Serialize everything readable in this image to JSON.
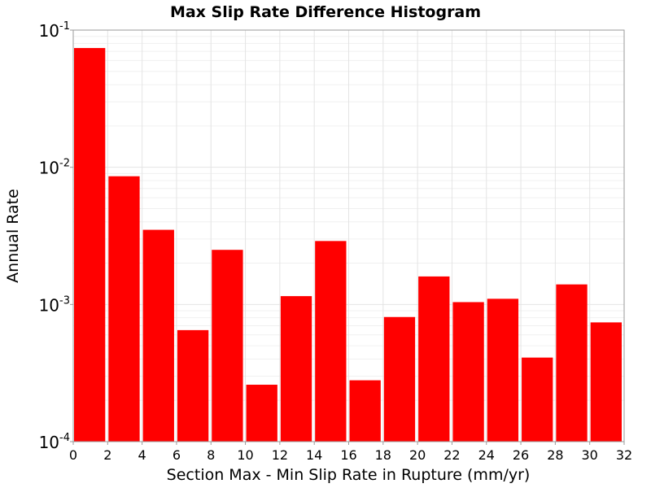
{
  "chart_data": {
    "type": "bar",
    "title": "Max Slip Rate Difference Histogram",
    "xlabel": "Section Max - Min Slip Rate in Rupture (mm/yr)",
    "ylabel": "Annual Rate",
    "xlim": [
      0,
      32
    ],
    "ylim": [
      0.0001,
      0.1
    ],
    "yscale": "log",
    "grid": true,
    "bar_width": 2,
    "bar_color": "#ff0000",
    "x_ticks": [
      "0",
      "2",
      "4",
      "6",
      "8",
      "10",
      "12",
      "14",
      "16",
      "18",
      "20",
      "22",
      "24",
      "26",
      "28",
      "30",
      "32"
    ],
    "y_ticks": [
      {
        "base": "10",
        "exp": "-4",
        "value": 0.0001
      },
      {
        "base": "10",
        "exp": "-3",
        "value": 0.001
      },
      {
        "base": "10",
        "exp": "-2",
        "value": 0.01
      },
      {
        "base": "10",
        "exp": "-1",
        "value": 0.1
      }
    ],
    "bins": [
      {
        "x_start": 0,
        "value": 0.074
      },
      {
        "x_start": 2,
        "value": 0.0086
      },
      {
        "x_start": 4,
        "value": 0.0035
      },
      {
        "x_start": 6,
        "value": 0.00065
      },
      {
        "x_start": 8,
        "value": 0.0025
      },
      {
        "x_start": 10,
        "value": 0.00026
      },
      {
        "x_start": 12,
        "value": 0.00115
      },
      {
        "x_start": 14,
        "value": 0.0029
      },
      {
        "x_start": 16,
        "value": 0.00028
      },
      {
        "x_start": 18,
        "value": 0.00081
      },
      {
        "x_start": 20,
        "value": 0.0016
      },
      {
        "x_start": 22,
        "value": 0.00104
      },
      {
        "x_start": 24,
        "value": 0.0011
      },
      {
        "x_start": 26,
        "value": 0.00041
      },
      {
        "x_start": 28,
        "value": 0.0014
      },
      {
        "x_start": 30,
        "value": 0.00074
      }
    ]
  }
}
